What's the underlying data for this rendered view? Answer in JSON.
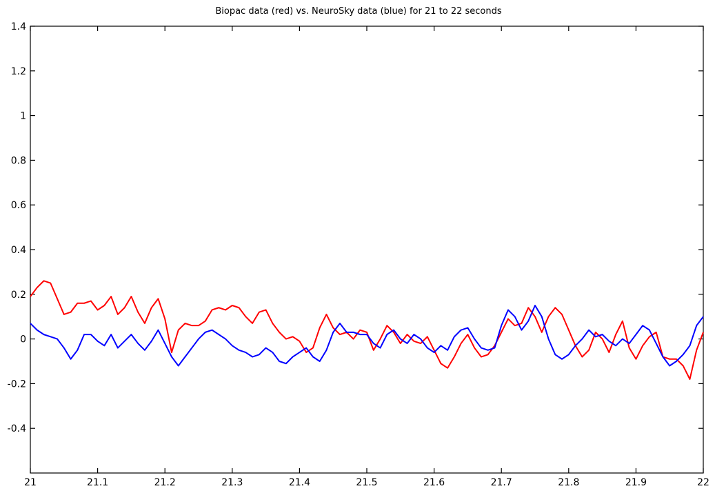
{
  "chart_data": {
    "type": "line",
    "title": "Biopac data (red) vs. NeuroSky data (blue) for 21 to 22 seconds",
    "xlabel": "",
    "ylabel": "",
    "xlim": [
      21,
      22
    ],
    "ylim": [
      -0.6,
      1.4
    ],
    "xticks": [
      "21",
      "21.1",
      "21.2",
      "21.3",
      "21.4",
      "21.5",
      "21.6",
      "21.7",
      "21.8",
      "21.9",
      "22"
    ],
    "yticks": [
      "1.4",
      "1.2",
      "1",
      "0.8",
      "0.6",
      "0.4",
      "0.2",
      "0",
      "-0.2",
      "-0.4"
    ],
    "grid": false,
    "series": [
      {
        "color": "#ff0000",
        "x": [
          21.0,
          21.01,
          21.02,
          21.03,
          21.04,
          21.05,
          21.06,
          21.07,
          21.08,
          21.09,
          21.1,
          21.11,
          21.12,
          21.13,
          21.14,
          21.15,
          21.16,
          21.17,
          21.18,
          21.19,
          21.2,
          21.21,
          21.22,
          21.23,
          21.24,
          21.25,
          21.26,
          21.27,
          21.28,
          21.29,
          21.3,
          21.31,
          21.32,
          21.33,
          21.34,
          21.35,
          21.36,
          21.37,
          21.38,
          21.39,
          21.4,
          21.41,
          21.42,
          21.43,
          21.44,
          21.45,
          21.46,
          21.47,
          21.48,
          21.49,
          21.5,
          21.51,
          21.52,
          21.53,
          21.54,
          21.55,
          21.56,
          21.57,
          21.58,
          21.59,
          21.6,
          21.61,
          21.62,
          21.63,
          21.64,
          21.65,
          21.66,
          21.67,
          21.68,
          21.69,
          21.7,
          21.71,
          21.72,
          21.73,
          21.74,
          21.75,
          21.76,
          21.77,
          21.78,
          21.79,
          21.8,
          21.81,
          21.82,
          21.83,
          21.84,
          21.85,
          21.86,
          21.87,
          21.88,
          21.89,
          21.9,
          21.91,
          21.92,
          21.93,
          21.94,
          21.95,
          21.96,
          21.97,
          21.98,
          21.99,
          22.0
        ],
        "y": [
          0.19,
          0.23,
          0.26,
          0.25,
          0.18,
          0.11,
          0.12,
          0.16,
          0.16,
          0.17,
          0.13,
          0.15,
          0.19,
          0.11,
          0.14,
          0.19,
          0.12,
          0.07,
          0.14,
          0.18,
          0.09,
          -0.06,
          0.04,
          0.07,
          0.06,
          0.06,
          0.08,
          0.13,
          0.14,
          0.13,
          0.15,
          0.14,
          0.1,
          0.07,
          0.12,
          0.13,
          0.07,
          0.03,
          0.0,
          0.01,
          -0.01,
          -0.06,
          -0.04,
          0.05,
          0.11,
          0.05,
          0.02,
          0.03,
          0.0,
          0.04,
          0.03,
          -0.05,
          0.0,
          0.06,
          0.03,
          -0.02,
          0.02,
          -0.01,
          -0.02,
          0.01,
          -0.05,
          -0.11,
          -0.13,
          -0.08,
          -0.02,
          0.02,
          -0.04,
          -0.08,
          -0.07,
          -0.03,
          0.03,
          0.09,
          0.06,
          0.07,
          0.14,
          0.1,
          0.03,
          0.1,
          0.14,
          0.11,
          0.04,
          -0.03,
          -0.08,
          -0.05,
          0.03,
          0.0,
          -0.06,
          0.02,
          0.08,
          -0.04,
          -0.09,
          -0.03,
          0.01,
          0.03,
          -0.08,
          -0.09,
          -0.09,
          -0.12,
          -0.18,
          -0.05,
          0.03
        ]
      },
      {
        "color": "#0000ff",
        "x": [
          21.0,
          21.01,
          21.02,
          21.03,
          21.04,
          21.05,
          21.06,
          21.07,
          21.08,
          21.09,
          21.1,
          21.11,
          21.12,
          21.13,
          21.14,
          21.15,
          21.16,
          21.17,
          21.18,
          21.19,
          21.2,
          21.21,
          21.22,
          21.23,
          21.24,
          21.25,
          21.26,
          21.27,
          21.28,
          21.29,
          21.3,
          21.31,
          21.32,
          21.33,
          21.34,
          21.35,
          21.36,
          21.37,
          21.38,
          21.39,
          21.4,
          21.41,
          21.42,
          21.43,
          21.44,
          21.45,
          21.46,
          21.47,
          21.48,
          21.49,
          21.5,
          21.51,
          21.52,
          21.53,
          21.54,
          21.55,
          21.56,
          21.57,
          21.58,
          21.59,
          21.6,
          21.61,
          21.62,
          21.63,
          21.64,
          21.65,
          21.66,
          21.67,
          21.68,
          21.69,
          21.7,
          21.71,
          21.72,
          21.73,
          21.74,
          21.75,
          21.76,
          21.77,
          21.78,
          21.79,
          21.8,
          21.81,
          21.82,
          21.83,
          21.84,
          21.85,
          21.86,
          21.87,
          21.88,
          21.89,
          21.9,
          21.91,
          21.92,
          21.93,
          21.94,
          21.95,
          21.96,
          21.97,
          21.98,
          21.99,
          22.0
        ],
        "y": [
          0.07,
          0.04,
          0.02,
          0.01,
          0.0,
          -0.04,
          -0.09,
          -0.05,
          0.02,
          0.02,
          -0.01,
          -0.03,
          0.02,
          -0.04,
          -0.01,
          0.02,
          -0.02,
          -0.05,
          -0.01,
          0.04,
          -0.02,
          -0.08,
          -0.12,
          -0.08,
          -0.04,
          0.0,
          0.03,
          0.04,
          0.02,
          0.0,
          -0.03,
          -0.05,
          -0.06,
          -0.08,
          -0.07,
          -0.04,
          -0.06,
          -0.1,
          -0.11,
          -0.08,
          -0.06,
          -0.04,
          -0.08,
          -0.1,
          -0.05,
          0.03,
          0.07,
          0.03,
          0.03,
          0.02,
          0.02,
          -0.02,
          -0.04,
          0.02,
          0.04,
          0.0,
          -0.02,
          0.02,
          0.0,
          -0.04,
          -0.06,
          -0.03,
          -0.05,
          0.01,
          0.04,
          0.05,
          0.0,
          -0.04,
          -0.05,
          -0.04,
          0.06,
          0.13,
          0.1,
          0.04,
          0.08,
          0.15,
          0.1,
          0.0,
          -0.07,
          -0.09,
          -0.07,
          -0.03,
          0.0,
          0.04,
          0.01,
          0.02,
          -0.01,
          -0.03,
          0.0,
          -0.02,
          0.02,
          0.06,
          0.04,
          -0.02,
          -0.08,
          -0.12,
          -0.1,
          -0.07,
          -0.03,
          0.06,
          0.1
        ]
      }
    ]
  }
}
